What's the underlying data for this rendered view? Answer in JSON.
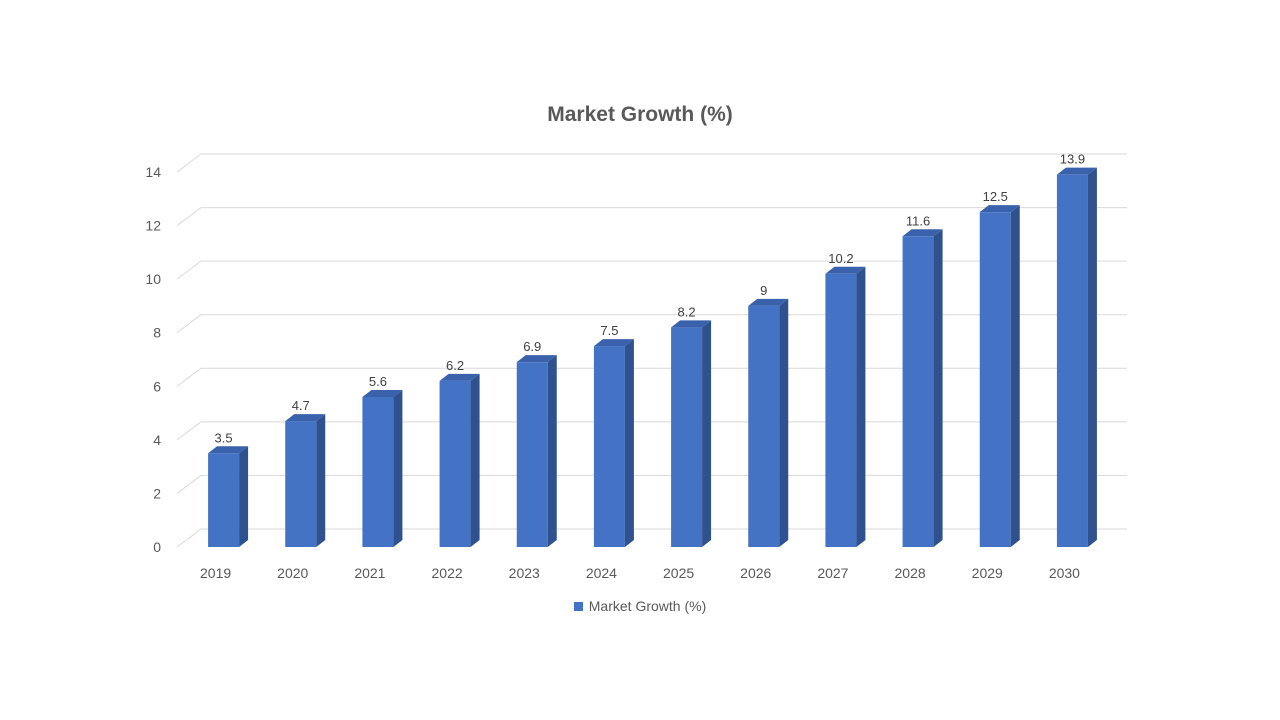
{
  "chart_data": {
    "type": "bar",
    "title": "Market Growth (%)",
    "categories": [
      "2019",
      "2020",
      "2021",
      "2022",
      "2023",
      "2024",
      "2025",
      "2026",
      "2027",
      "2028",
      "2029",
      "2030"
    ],
    "series": [
      {
        "name": "Market Growth (%)",
        "values": [
          3.5,
          4.7,
          5.6,
          6.2,
          6.9,
          7.5,
          8.2,
          9,
          10.2,
          11.6,
          12.5,
          13.9
        ]
      }
    ],
    "yticks": [
      "0",
      "2",
      "4",
      "6",
      "8",
      "10",
      "12",
      "14"
    ],
    "ylim": [
      0,
      14
    ],
    "grid": true,
    "legend_position": "bottom",
    "style": "3d-column",
    "colors": {
      "front": "#4472C4",
      "side": "#2F528F",
      "top": "#3A62AC",
      "grid": "#D9D9D9",
      "text": "#595959"
    }
  }
}
